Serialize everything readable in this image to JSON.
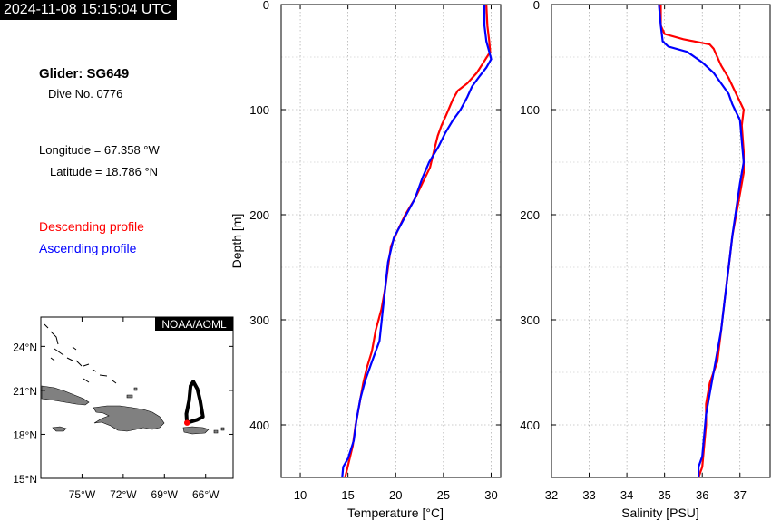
{
  "header": {
    "timestamp": "2024-11-08 15:15:04 UTC",
    "glider_title": "Glider: SG649",
    "dive_label": "Dive No. 0776",
    "longitude_text": "Longitude = 67.358 °W",
    "latitude_text": "Latitude = 18.786 °N"
  },
  "legend": {
    "descending": "Descending profile",
    "ascending": "Ascending profile"
  },
  "colors": {
    "descending": "#ff0000",
    "ascending": "#0000ff",
    "land": "#808080",
    "track": "#000000"
  },
  "map": {
    "credit": "NOAA/AOML",
    "lat_ticks": [
      15,
      18,
      21,
      24
    ],
    "lat_labels": [
      "15°N",
      "18°N",
      "21°N",
      "24°N"
    ],
    "lon_ticks": [
      -75,
      -72,
      -69,
      -66
    ],
    "lon_labels": [
      "75°W",
      "72°W",
      "69°W",
      "66°W"
    ],
    "lon_range": [
      -78,
      -64
    ],
    "lat_range": [
      15,
      26
    ],
    "track": [
      [
        -67.36,
        18.79
      ],
      [
        -66.6,
        19.0
      ],
      [
        -66.2,
        19.2
      ],
      [
        -66.4,
        20.3
      ],
      [
        -66.6,
        21.1
      ],
      [
        -66.9,
        21.6
      ],
      [
        -67.1,
        21.3
      ],
      [
        -67.2,
        20.3
      ],
      [
        -67.4,
        19.4
      ],
      [
        -67.36,
        18.79
      ]
    ],
    "glider_position": [
      -67.358,
      18.786
    ]
  },
  "chart_data": [
    {
      "type": "line",
      "xlabel": "Temperature [°C]",
      "ylabel": "Depth [m]",
      "xlim": [
        8,
        31
      ],
      "ylim": [
        0,
        450
      ],
      "y_inverted": true,
      "xticks": [
        10,
        15,
        20,
        25,
        30
      ],
      "yticks": [
        0,
        100,
        200,
        300,
        400
      ],
      "grid": true,
      "series": [
        {
          "name": "Descending profile",
          "points": [
            [
              29.5,
              0
            ],
            [
              29.6,
              20
            ],
            [
              29.8,
              35
            ],
            [
              29.9,
              45
            ],
            [
              29.2,
              55
            ],
            [
              28.5,
              65
            ],
            [
              27.5,
              75
            ],
            [
              26.5,
              82
            ],
            [
              26.0,
              90
            ],
            [
              25.3,
              105
            ],
            [
              24.8,
              115
            ],
            [
              24.4,
              125
            ],
            [
              24.0,
              140
            ],
            [
              23.6,
              155
            ],
            [
              22.8,
              170
            ],
            [
              22.0,
              185
            ],
            [
              21.0,
              200
            ],
            [
              20.2,
              215
            ],
            [
              19.5,
              230
            ],
            [
              19.2,
              250
            ],
            [
              18.9,
              270
            ],
            [
              18.5,
              290
            ],
            [
              17.9,
              310
            ],
            [
              17.5,
              330
            ],
            [
              17.0,
              345
            ],
            [
              16.6,
              360
            ],
            [
              16.2,
              380
            ],
            [
              15.8,
              400
            ],
            [
              15.5,
              420
            ],
            [
              15.1,
              435
            ],
            [
              14.7,
              450
            ]
          ]
        },
        {
          "name": "Ascending profile",
          "points": [
            [
              29.3,
              0
            ],
            [
              29.3,
              20
            ],
            [
              29.5,
              35
            ],
            [
              29.8,
              45
            ],
            [
              30.0,
              52
            ],
            [
              29.5,
              60
            ],
            [
              28.8,
              68
            ],
            [
              28.0,
              78
            ],
            [
              27.5,
              88
            ],
            [
              26.8,
              100
            ],
            [
              26.0,
              110
            ],
            [
              25.2,
              122
            ],
            [
              24.5,
              135
            ],
            [
              23.5,
              150
            ],
            [
              22.8,
              165
            ],
            [
              22.0,
              185
            ],
            [
              20.8,
              205
            ],
            [
              19.8,
              222
            ],
            [
              19.2,
              245
            ],
            [
              18.9,
              270
            ],
            [
              18.6,
              295
            ],
            [
              18.3,
              320
            ],
            [
              17.5,
              340
            ],
            [
              16.8,
              358
            ],
            [
              16.3,
              375
            ],
            [
              15.9,
              395
            ],
            [
              15.6,
              415
            ],
            [
              15.0,
              432
            ],
            [
              14.5,
              440
            ],
            [
              14.4,
              450
            ]
          ]
        }
      ]
    },
    {
      "type": "line",
      "xlabel": "Salinity [PSU]",
      "ylabel": "",
      "xlim": [
        32,
        37.8
      ],
      "ylim": [
        0,
        450
      ],
      "y_inverted": true,
      "xticks": [
        32,
        33,
        34,
        35,
        36,
        37
      ],
      "yticks": [
        0,
        100,
        200,
        300,
        400
      ],
      "grid": true,
      "series": [
        {
          "name": "Descending profile",
          "points": [
            [
              34.9,
              0
            ],
            [
              34.9,
              20
            ],
            [
              35.0,
              28
            ],
            [
              35.5,
              33
            ],
            [
              36.2,
              38
            ],
            [
              36.3,
              42
            ],
            [
              36.5,
              58
            ],
            [
              36.7,
              70
            ],
            [
              36.9,
              85
            ],
            [
              37.1,
              100
            ],
            [
              37.05,
              115
            ],
            [
              37.1,
              140
            ],
            [
              37.1,
              160
            ],
            [
              37.0,
              180
            ],
            [
              36.9,
              200
            ],
            [
              36.8,
              220
            ],
            [
              36.7,
              250
            ],
            [
              36.6,
              280
            ],
            [
              36.5,
              310
            ],
            [
              36.4,
              340
            ],
            [
              36.2,
              360
            ],
            [
              36.1,
              380
            ],
            [
              36.1,
              400
            ],
            [
              36.05,
              420
            ],
            [
              36.0,
              440
            ],
            [
              35.9,
              450
            ]
          ]
        },
        {
          "name": "Ascending profile",
          "points": [
            [
              34.85,
              0
            ],
            [
              34.9,
              20
            ],
            [
              34.95,
              35
            ],
            [
              35.1,
              40
            ],
            [
              35.6,
              45
            ],
            [
              36.0,
              55
            ],
            [
              36.3,
              65
            ],
            [
              36.5,
              75
            ],
            [
              36.7,
              85
            ],
            [
              36.8,
              95
            ],
            [
              37.0,
              110
            ],
            [
              37.05,
              130
            ],
            [
              37.1,
              150
            ],
            [
              37.0,
              170
            ],
            [
              36.9,
              195
            ],
            [
              36.8,
              220
            ],
            [
              36.7,
              250
            ],
            [
              36.6,
              280
            ],
            [
              36.5,
              310
            ],
            [
              36.35,
              340
            ],
            [
              36.2,
              370
            ],
            [
              36.1,
              390
            ],
            [
              36.05,
              410
            ],
            [
              36.0,
              430
            ],
            [
              35.9,
              440
            ],
            [
              35.9,
              450
            ]
          ]
        }
      ]
    }
  ]
}
